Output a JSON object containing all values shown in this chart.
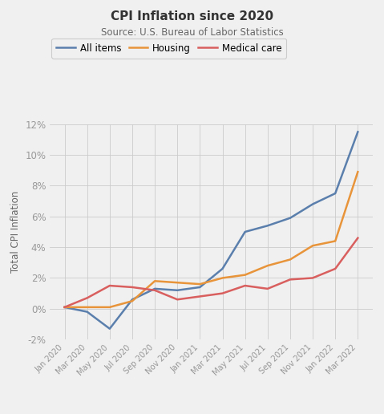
{
  "title": "CPI Inflation since 2020",
  "subtitle": "Source: U.S. Bureau of Labor Statistics",
  "ylabel": "Total CPI Inflation",
  "background_color": "#f0f0f0",
  "line_color_all": "#5b7fad",
  "line_color_housing": "#e8943a",
  "line_color_medical": "#d95f5f",
  "x_labels": [
    "Jan 2020",
    "Mar 2020",
    "May 2020",
    "Jul 2020",
    "Sep 2020",
    "Nov 2020",
    "Jan 2021",
    "Mar 2021",
    "May 2021",
    "Jul 2021",
    "Sep 2021",
    "Nov 2021",
    "Jan 2022",
    "Mar 2022"
  ],
  "all_items": [
    0.1,
    -0.2,
    -1.3,
    0.6,
    1.3,
    1.2,
    1.4,
    2.6,
    5.0,
    5.4,
    5.9,
    6.8,
    7.5,
    11.5
  ],
  "housing": [
    0.1,
    0.1,
    0.1,
    0.5,
    1.8,
    1.7,
    1.6,
    2.0,
    2.2,
    2.8,
    3.2,
    4.1,
    4.4,
    8.9
  ],
  "medical_care": [
    0.1,
    0.7,
    1.5,
    1.4,
    1.2,
    0.6,
    0.8,
    1.0,
    1.5,
    1.3,
    1.9,
    2.0,
    2.6,
    4.6
  ],
  "ylim": [
    -2,
    12
  ],
  "yticks": [
    -2,
    0,
    2,
    4,
    6,
    8,
    10,
    12
  ]
}
